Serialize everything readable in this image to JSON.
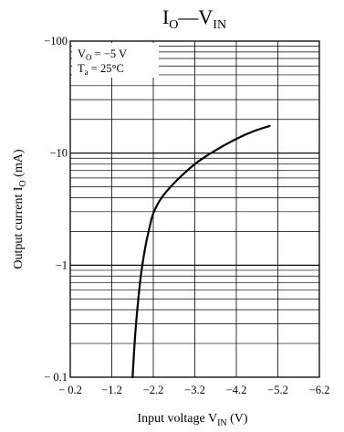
{
  "chart_data": {
    "type": "line",
    "title": {
      "main": "I",
      "sub": "O",
      "dash": "—",
      "main2": "V",
      "sub2": "IN"
    },
    "xlabel": {
      "main": "Input voltage  V",
      "sub": "IN",
      "tail": "  (V)"
    },
    "ylabel": {
      "main": "Output current  I",
      "sub": "O",
      "tail": "  (mA)"
    },
    "x_ticks": [
      "− 0.2",
      "−1.2",
      "−2.2",
      "−3.2",
      "−4.2",
      "−5.2",
      "−6.2"
    ],
    "x_tick_values": [
      -0.2,
      -1.2,
      -2.2,
      -3.2,
      -4.2,
      -5.2,
      -6.2
    ],
    "y_ticks": [
      "−100",
      "−10",
      "−1",
      "− 0.1"
    ],
    "y_tick_values": [
      -100,
      -10,
      -1,
      -0.1
    ],
    "xlim": [
      -0.2,
      -6.2
    ],
    "ylim": [
      -0.1,
      -100
    ],
    "yscale": "log",
    "grid": true,
    "conditions": [
      {
        "main": "V",
        "sub": "O",
        "tail": " = −5 V"
      },
      {
        "main": "T",
        "sub": "a",
        "tail": " = 25°C"
      }
    ],
    "series": [
      {
        "x": [
          -1.7,
          -1.75,
          -1.8,
          -1.9,
          -2.0,
          -2.1,
          -2.2,
          -2.4,
          -2.7,
          -3.0,
          -3.3,
          -3.7,
          -4.2,
          -4.6,
          -5.0
        ],
        "y": [
          -0.1,
          -0.2,
          -0.35,
          -0.8,
          -1.4,
          -2.1,
          -2.9,
          -4.0,
          -5.4,
          -6.9,
          -8.5,
          -10.6,
          -13.4,
          -15.6,
          -17.5
        ]
      }
    ]
  }
}
